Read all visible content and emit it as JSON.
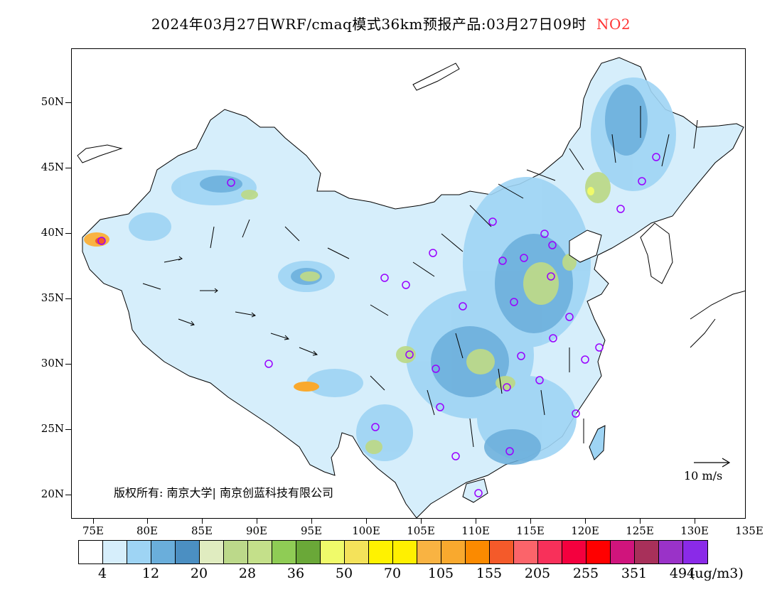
{
  "title": {
    "main": "2024年03月27日WRF/cmaq模式36km预报产品:03月27日09时",
    "species": "NO2",
    "species_color": "#ff3333"
  },
  "map": {
    "lat_labels": [
      "50N",
      "45N",
      "40N",
      "35N",
      "30N",
      "25N",
      "20N"
    ],
    "lon_labels": [
      "75E",
      "80E",
      "85E",
      "90E",
      "95E",
      "100E",
      "105E",
      "110E",
      "115E",
      "120E",
      "125E",
      "130E",
      "135E"
    ],
    "copyright": "版权所有: 南京大学| 南京创蓝科技有限公司",
    "reference_vector_label": "10 m/s",
    "land_border_color": "#000000",
    "station_marker_color": "#9900ff"
  },
  "colorbar": {
    "colors": [
      "#ffffff",
      "#d6eefb",
      "#9ed4f4",
      "#6aaedb",
      "#4b8fc2",
      "#e0ecc0",
      "#bcd98a",
      "#c4e08a",
      "#8fcc55",
      "#6aa838",
      "#f0fa6a",
      "#f4e25a",
      "#fff200",
      "#fff000",
      "#f9b342",
      "#f9a92e",
      "#fb8a00",
      "#f45a2a",
      "#fb646a",
      "#f8305a",
      "#f4003e",
      "#ff0000",
      "#d0147c",
      "#a8305a",
      "#9a32c8",
      "#8a2ae8"
    ],
    "labels": [
      "4",
      "12",
      "20",
      "28",
      "36",
      "50",
      "70",
      "105",
      "155",
      "205",
      "255",
      "351",
      "494"
    ],
    "unit": "(ug/m3)"
  }
}
